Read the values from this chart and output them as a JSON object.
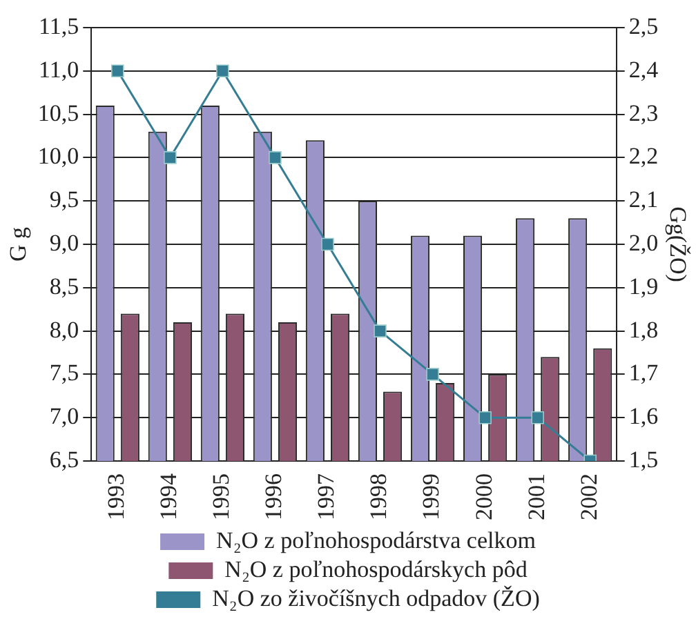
{
  "chart_data": {
    "type": "bar",
    "categories": [
      "1993",
      "1994",
      "1995",
      "1996",
      "1997",
      "1998",
      "1999",
      "2000",
      "2001",
      "2002"
    ],
    "series": [
      {
        "name": "N₂O z poľnohospodárstva celkom",
        "color": "#9b94c8",
        "values": [
          10.6,
          10.3,
          10.6,
          10.3,
          10.2,
          9.5,
          9.1,
          9.1,
          9.3,
          9.3
        ]
      },
      {
        "name": "N₂O z poľnohospodárskych pôd",
        "color": "#8e5670",
        "values": [
          8.2,
          8.1,
          8.2,
          8.1,
          8.2,
          7.3,
          7.4,
          7.5,
          7.7,
          7.8
        ]
      },
      {
        "name": "N₂O zo živočíšnych odpadov (ŽO)",
        "color": "#347d94",
        "type": "line",
        "axis": "y2",
        "marker": "square",
        "values": [
          2.4,
          2.2,
          2.4,
          2.2,
          2.0,
          1.8,
          1.7,
          1.6,
          1.6,
          1.5
        ]
      }
    ],
    "ylabel": "G g",
    "y2label": "Gg(ŽO)",
    "ylim": [
      6.5,
      11.5
    ],
    "yticks": [
      {
        "value": 6.5,
        "label": "6,5"
      },
      {
        "value": 7,
        "label": "7,0"
      },
      {
        "value": 7.5,
        "label": "7,5"
      },
      {
        "value": 8,
        "label": "8,0"
      },
      {
        "value": 8.5,
        "label": "8,5"
      },
      {
        "value": 9,
        "label": "9,0"
      },
      {
        "value": 9.5,
        "label": "9,5"
      },
      {
        "value": 10,
        "label": "10,0"
      },
      {
        "value": 10.5,
        "label": "10,5"
      },
      {
        "value": 11,
        "label": "11,0"
      },
      {
        "value": 11.5,
        "label": "11,5"
      }
    ],
    "y2lim": [
      1.5,
      2.5
    ],
    "y2ticks": [
      {
        "value": 1.5,
        "label": "1,5"
      },
      {
        "value": 1.6,
        "label": "1,6"
      },
      {
        "value": 1.7,
        "label": "1,7"
      },
      {
        "value": 1.8,
        "label": "1,8"
      },
      {
        "value": 1.9,
        "label": "1,9"
      },
      {
        "value": 2,
        "label": "2,0"
      },
      {
        "value": 2.1,
        "label": "2,1"
      },
      {
        "value": 2.2,
        "label": "2,2"
      },
      {
        "value": 2.3,
        "label": "2,3"
      },
      {
        "value": 2.4,
        "label": "2,4"
      },
      {
        "value": 2.5,
        "label": "2,5"
      }
    ],
    "grid": "y",
    "legend": "bottom"
  }
}
